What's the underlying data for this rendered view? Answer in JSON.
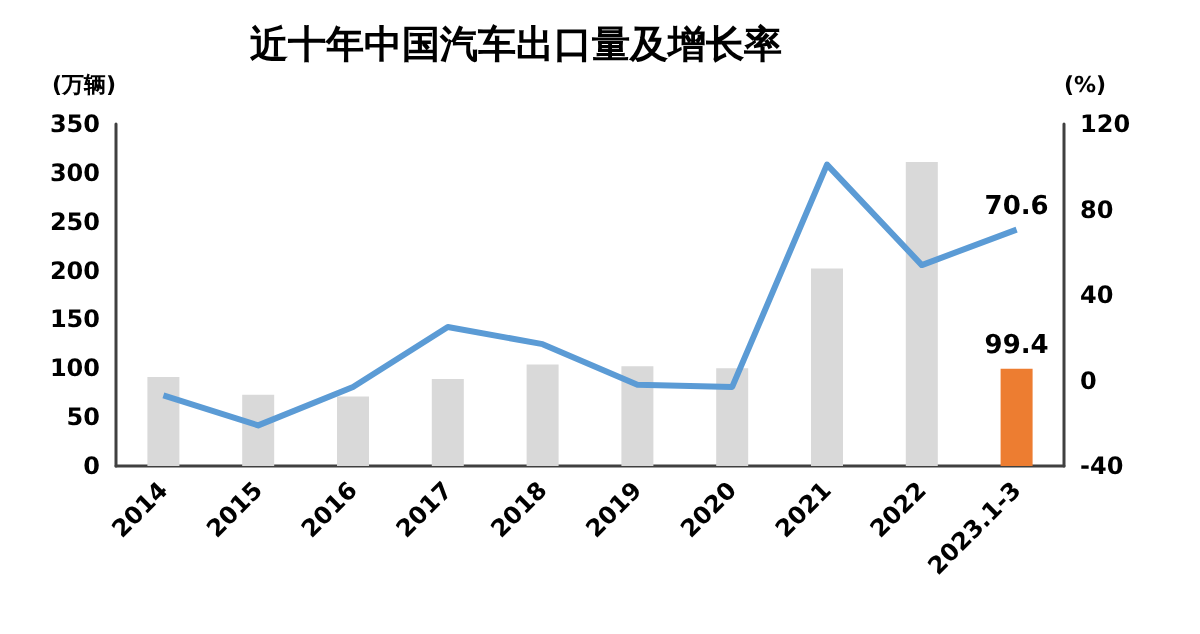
{
  "chart_data": {
    "type": "bar",
    "title": "近十年中国汽车出口量及增长率",
    "ylabel": "(万辆)",
    "y2label": "(%)",
    "categories": [
      "2014",
      "2015",
      "2016",
      "2017",
      "2018",
      "2019",
      "2020",
      "2021",
      "2022",
      "2023.1-3"
    ],
    "series": [
      {
        "colors": [
          "#d9d9d9",
          "#d9d9d9",
          "#d9d9d9",
          "#d9d9d9",
          "#d9d9d9",
          "#d9d9d9",
          "#d9d9d9",
          "#d9d9d9",
          "#d9d9d9",
          "#ed7d31"
        ],
        "values": [
          91,
          73,
          71,
          89,
          104,
          102,
          100,
          202,
          311,
          99.4
        ],
        "value_labels": [
          null,
          null,
          null,
          null,
          null,
          null,
          null,
          null,
          null,
          "99.4"
        ]
      },
      {
        "type": "line",
        "axis": "y2",
        "color": "#5b9bd5",
        "values": [
          -7,
          -21,
          -3,
          25,
          17,
          -2,
          -3,
          101,
          54,
          70.6
        ],
        "value_labels": [
          null,
          null,
          null,
          null,
          null,
          null,
          null,
          null,
          null,
          "70.6"
        ]
      }
    ],
    "ylim": [
      0,
      350
    ],
    "yticks": [
      0,
      50,
      100,
      150,
      200,
      250,
      300,
      350
    ],
    "y2lim": [
      -40,
      120
    ],
    "y2ticks": [
      -40,
      0,
      40,
      80,
      120
    ],
    "marker": "none",
    "grid": false
  }
}
